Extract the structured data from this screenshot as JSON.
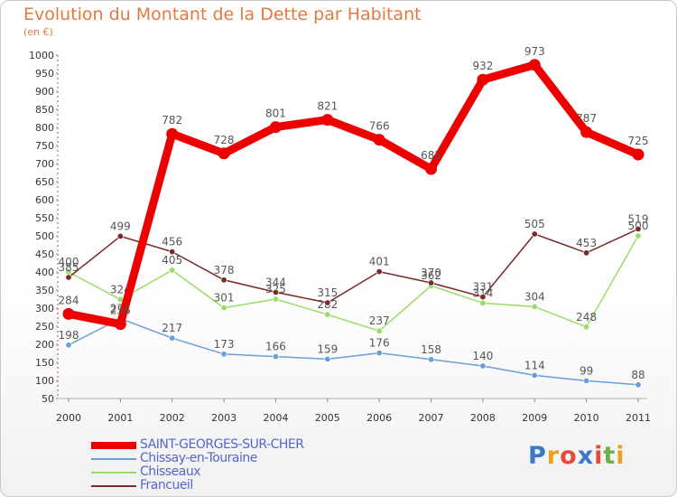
{
  "chart_data": {
    "type": "line",
    "title": "Evolution du Montant de la Dette par Habitant",
    "subtitle": "(en €)",
    "xlabel": "",
    "ylabel": "",
    "categories": [
      "2000",
      "2001",
      "2002",
      "2003",
      "2004",
      "2005",
      "2006",
      "2007",
      "2008",
      "2009",
      "2010",
      "2011"
    ],
    "ylim": [
      50,
      1000
    ],
    "yticks": [
      50,
      100,
      150,
      200,
      250,
      300,
      350,
      400,
      450,
      500,
      550,
      600,
      650,
      700,
      750,
      800,
      850,
      900,
      950,
      1000
    ],
    "grid": false,
    "legend_position": "bottom-left",
    "series": [
      {
        "name": "SAINT-GEORGES-SUR-CHER",
        "color": "#ee0000",
        "values": [
          284,
          256,
          782,
          728,
          801,
          821,
          766,
          685,
          932,
          973,
          787,
          725
        ],
        "labels": [
          "284",
          "256",
          "782",
          "728",
          "801",
          "821",
          "766",
          "685",
          "932",
          "973",
          "787",
          "725"
        ]
      },
      {
        "name": "Chissay-en-Touraine",
        "color": "#6a9fd6",
        "values": [
          198,
          271,
          217,
          173,
          166,
          159,
          176,
          158,
          140,
          114,
          99,
          88
        ],
        "labels": [
          "198",
          "271",
          "217",
          "173",
          "166",
          "159",
          "176",
          "158",
          "140",
          "114",
          "99",
          "88"
        ]
      },
      {
        "name": "Chisseaux",
        "color": "#99dd66",
        "values": [
          400,
          324,
          405,
          301,
          325,
          282,
          237,
          362,
          314,
          304,
          248,
          500
        ],
        "labels": [
          "400",
          "324",
          "405",
          "301",
          "325",
          "282",
          "237",
          "362",
          "314",
          "304",
          "248",
          "500"
        ]
      },
      {
        "name": "Francueil",
        "color": "#7a2a2a",
        "values": [
          385,
          499,
          456,
          378,
          344,
          315,
          401,
          370,
          331,
          505,
          453,
          519
        ],
        "labels": [
          "385",
          "499",
          "456",
          "378",
          "344",
          "315",
          "401",
          "370",
          "331",
          "505",
          "453",
          "519"
        ]
      }
    ]
  },
  "logo": {
    "letters": [
      "P",
      "r",
      "o",
      "x",
      "i",
      "t",
      "i"
    ],
    "colors": [
      "#3b78c8",
      "#f0a020",
      "#e84a3a",
      "#3b78c8",
      "#e84a3a",
      "#6ab04c",
      "#f0a020"
    ]
  }
}
